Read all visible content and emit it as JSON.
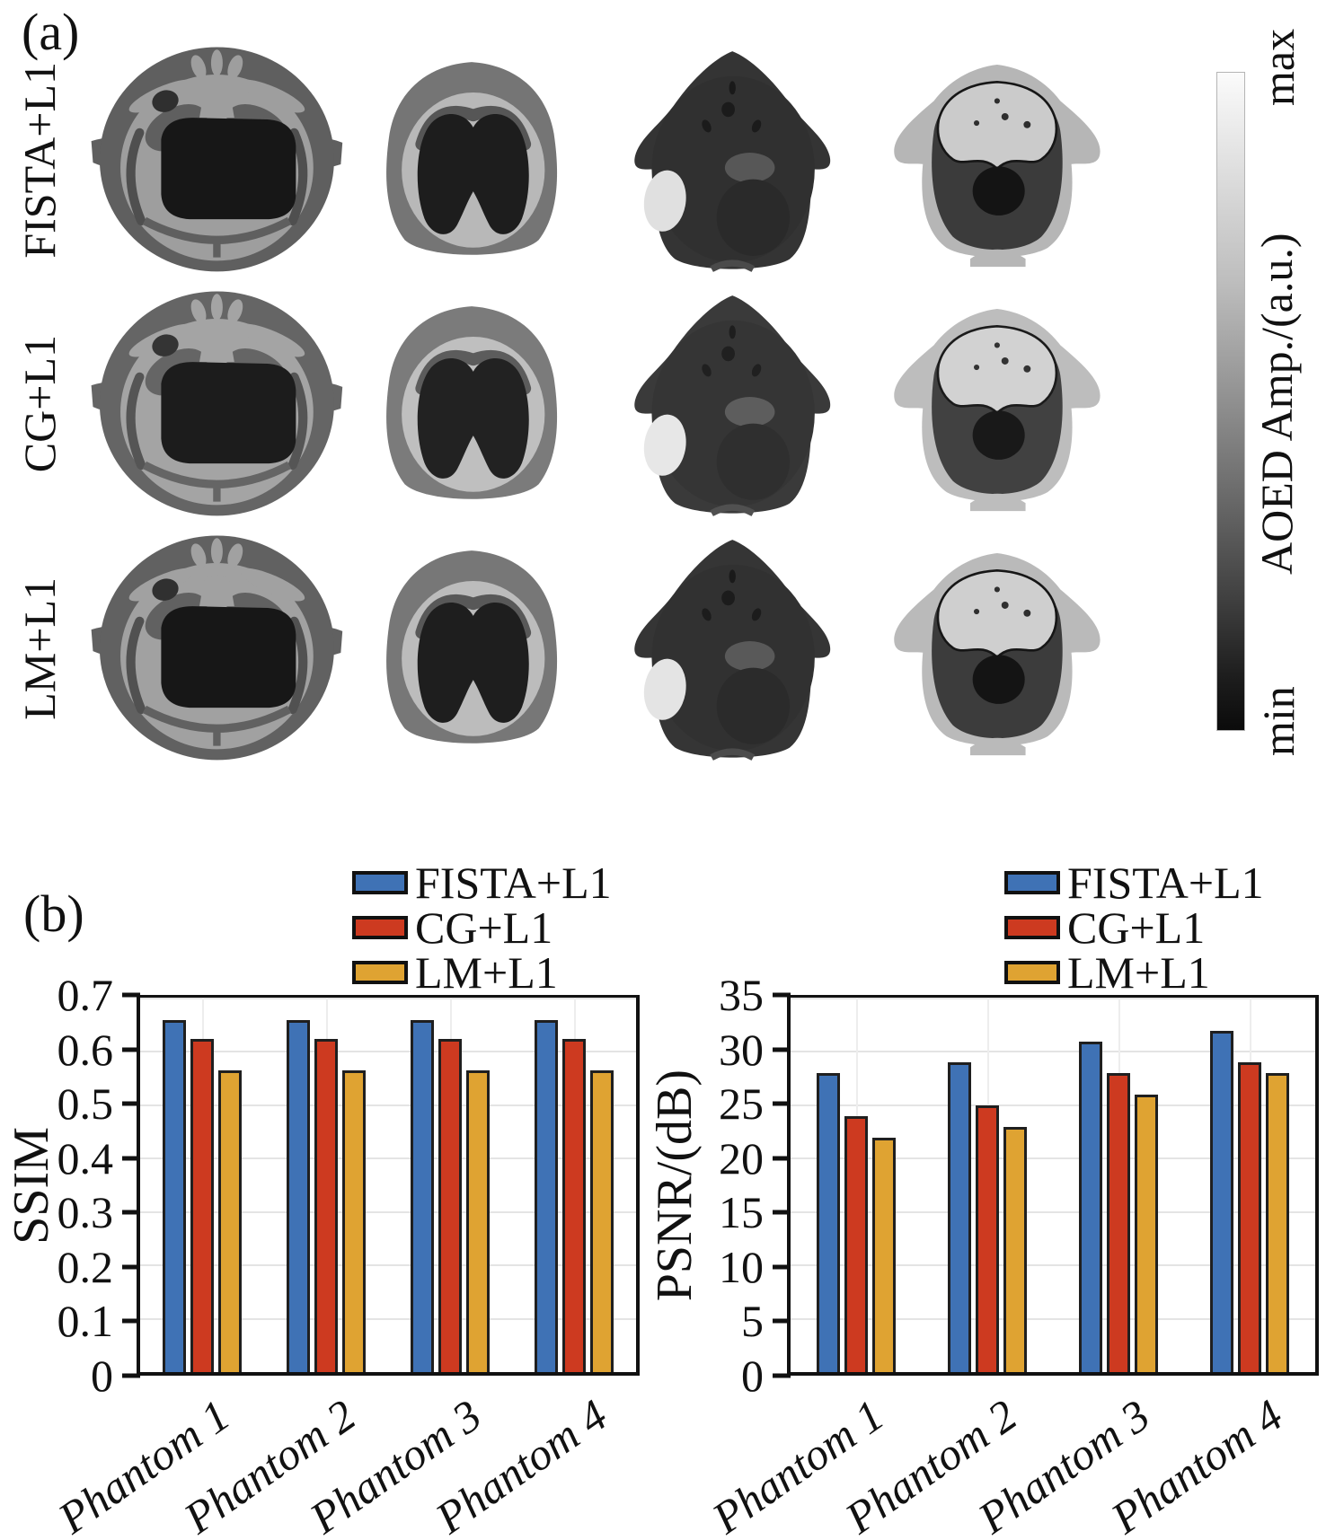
{
  "figure": {
    "panel_a_label": "(a)",
    "panel_b_label": "(b)"
  },
  "panel_a": {
    "row_labels": [
      "FISTA+L1",
      "CG+L1",
      "LM+L1"
    ],
    "num_image_columns": 4,
    "colorbar": {
      "max_label": "max",
      "min_label": "min",
      "axis_label": "AOED Amp./(a.u.)",
      "gradient": [
        "#fbfbfb 0%",
        "#dedede 15%",
        "#bdbdbd 32%",
        "#959595 48%",
        "#6b6b6b 64%",
        "#404040 80%",
        "#1d1d1d 92%",
        "#0b0b0b 100%"
      ]
    }
  },
  "chart_data": [
    {
      "type": "bar",
      "title": "",
      "xlabel": "",
      "ylabel": "SSIM",
      "ylim": [
        0,
        0.7
      ],
      "yticks": [
        0,
        0.1,
        0.2,
        0.3,
        0.4,
        0.5,
        0.6,
        0.7
      ],
      "ytick_labels": [
        "0",
        "0.1",
        "0.2",
        "0.3",
        "0.4",
        "0.5",
        "0.6",
        "0.7"
      ],
      "categories": [
        "Phantom 1",
        "Phantom 2",
        "Phantom 3",
        "Phantom 4"
      ],
      "grid": true,
      "legend_position": "above",
      "series": [
        {
          "name": "FISTA+L1",
          "color": "#3f72b5",
          "values": [
            0.66,
            0.66,
            0.66,
            0.66
          ]
        },
        {
          "name": "CG+L1",
          "color": "#cd3a20",
          "values": [
            0.625,
            0.625,
            0.625,
            0.625
          ]
        },
        {
          "name": "LM+L1",
          "color": "#dfa332",
          "values": [
            0.565,
            0.565,
            0.565,
            0.565
          ]
        }
      ]
    },
    {
      "type": "bar",
      "title": "",
      "xlabel": "",
      "ylabel": "PSNR/(dB)",
      "ylim": [
        0,
        35
      ],
      "yticks": [
        0,
        5,
        10,
        15,
        20,
        25,
        30,
        35
      ],
      "ytick_labels": [
        "0",
        "5",
        "10",
        "15",
        "20",
        "25",
        "30",
        "35"
      ],
      "categories": [
        "Phantom 1",
        "Phantom 2",
        "Phantom 3",
        "Phantom 4"
      ],
      "grid": true,
      "legend_position": "above",
      "series": [
        {
          "name": "FISTA+L1",
          "color": "#3f72b5",
          "values": [
            28,
            29,
            31,
            32
          ]
        },
        {
          "name": "CG+L1",
          "color": "#cd3a20",
          "values": [
            24,
            25,
            28,
            29
          ]
        },
        {
          "name": "LM+L1",
          "color": "#dfa332",
          "values": [
            22,
            23,
            26,
            28
          ]
        }
      ]
    }
  ]
}
